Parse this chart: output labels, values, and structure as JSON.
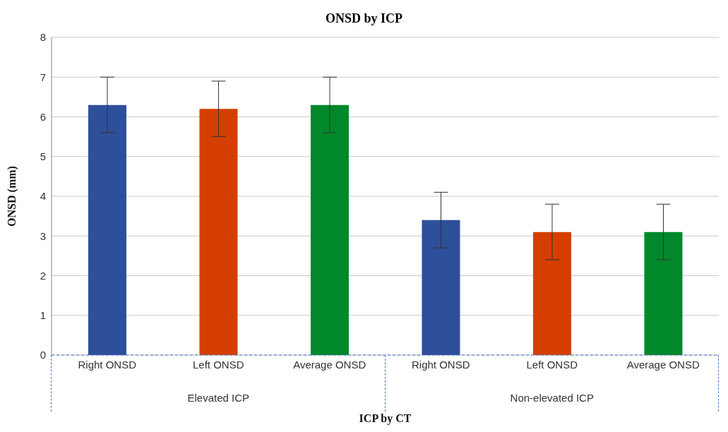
{
  "chart_data": {
    "type": "bar",
    "title": "ONSD by ICP",
    "xlabel": "ICP by  CT",
    "ylabel": "ONSD (mm)",
    "categories": [
      "Right ONSD",
      "Left ONSD",
      "Average ONSD",
      "Right ONSD",
      "Left ONSD",
      "Average ONSD"
    ],
    "values": [
      6.3,
      6.2,
      6.3,
      3.4,
      3.1,
      3.1
    ],
    "errors": [
      0.7,
      0.7,
      0.7,
      0.7,
      0.7,
      0.7
    ],
    "colors": [
      "#2e4f9a",
      "#d43f00",
      "#00882b",
      "#2e4f9a",
      "#d43f00",
      "#00882b"
    ],
    "annotations": [
      "Elevated ICP",
      "Non-elevated ICP"
    ],
    "ylim": [
      0,
      8
    ],
    "yticks": [
      0,
      1,
      2,
      3,
      4,
      5,
      6,
      7,
      8
    ],
    "grid": "y"
  }
}
